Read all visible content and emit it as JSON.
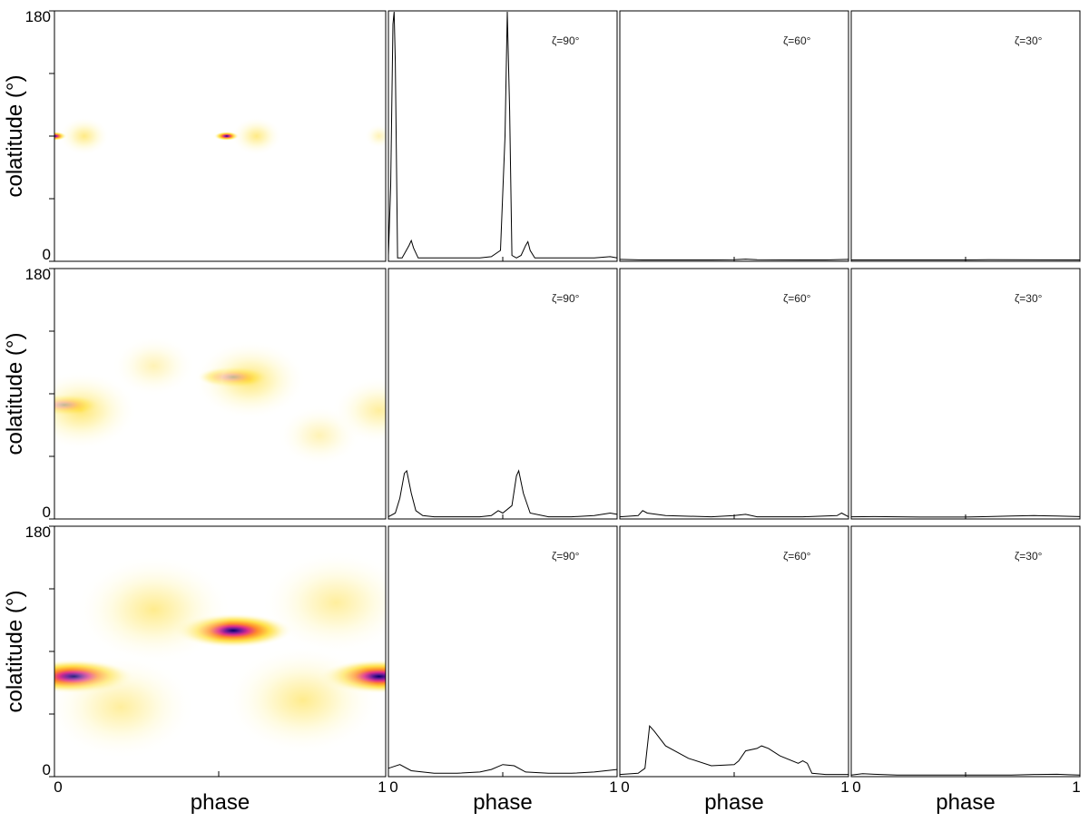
{
  "chart_data": {
    "type": "heatmap",
    "rows": 3,
    "shared_labels": {
      "ylabel": "colatitude (°)",
      "xlabel": "phase",
      "y_ticks": [
        "180",
        "0"
      ],
      "x_ticks": [
        "0",
        "1"
      ]
    },
    "heatmaps": [
      {
        "row": 1,
        "xlim": [
          0,
          1
        ],
        "ylim": [
          0,
          180
        ],
        "colormap": [
          "#ffffff",
          "#fff8c8",
          "#ffe04a",
          "#ff8c2a",
          "#e0308a",
          "#6a1a9a",
          "#000066"
        ],
        "blobs": [
          {
            "phase": 0.0,
            "colatitude": 90,
            "intensity": 0.85
          },
          {
            "phase": 0.09,
            "colatitude": 90,
            "intensity": 0.45
          },
          {
            "phase": 0.52,
            "colatitude": 90,
            "intensity": 0.85
          },
          {
            "phase": 0.61,
            "colatitude": 90,
            "intensity": 0.45
          },
          {
            "phase": 0.98,
            "colatitude": 90,
            "intensity": 0.15
          }
        ]
      },
      {
        "row": 2,
        "xlim": [
          0,
          1
        ],
        "ylim": [
          0,
          180
        ],
        "blobs": [
          {
            "phase": 0.03,
            "colatitude": 82,
            "intensity": 1.0
          },
          {
            "phase": 0.08,
            "colatitude": 78,
            "intensity": 0.55
          },
          {
            "phase": 0.54,
            "colatitude": 102,
            "intensity": 1.0
          },
          {
            "phase": 0.59,
            "colatitude": 100,
            "intensity": 0.55
          },
          {
            "phase": 0.3,
            "colatitude": 110,
            "intensity": 0.15
          },
          {
            "phase": 0.8,
            "colatitude": 60,
            "intensity": 0.15
          },
          {
            "phase": 0.98,
            "colatitude": 78,
            "intensity": 0.3
          }
        ]
      },
      {
        "row": 3,
        "xlim": [
          0,
          1
        ],
        "ylim": [
          0,
          180
        ],
        "blobs": [
          {
            "phase": 0.06,
            "colatitude": 72,
            "intensity": 1.0
          },
          {
            "phase": 0.54,
            "colatitude": 105,
            "intensity": 1.0
          },
          {
            "phase": 0.98,
            "colatitude": 72,
            "intensity": 0.8
          },
          {
            "phase": 0.3,
            "colatitude": 120,
            "intensity": 0.4
          },
          {
            "phase": 0.75,
            "colatitude": 55,
            "intensity": 0.4
          },
          {
            "phase": 0.2,
            "colatitude": 50,
            "intensity": 0.3
          },
          {
            "phase": 0.85,
            "colatitude": 125,
            "intensity": 0.3
          }
        ]
      }
    ],
    "light_curves": [
      {
        "row": 1,
        "zeta": "ζ=90°",
        "ylim": [
          0,
          1
        ],
        "x": [
          0,
          0.01,
          0.02,
          0.025,
          0.03,
          0.04,
          0.06,
          0.09,
          0.1,
          0.11,
          0.13,
          0.2,
          0.3,
          0.4,
          0.45,
          0.49,
          0.51,
          0.52,
          0.53,
          0.54,
          0.56,
          0.58,
          0.6,
          0.61,
          0.62,
          0.64,
          0.7,
          0.8,
          0.9,
          0.97,
          1.0
        ],
        "y": [
          0.02,
          0.3,
          0.95,
          1.0,
          0.8,
          0.01,
          0.01,
          0.06,
          0.08,
          0.05,
          0.01,
          0.01,
          0.01,
          0.01,
          0.015,
          0.04,
          0.5,
          1.0,
          0.6,
          0.02,
          0.01,
          0.02,
          0.06,
          0.075,
          0.04,
          0.01,
          0.01,
          0.01,
          0.01,
          0.015,
          0.01
        ]
      },
      {
        "row": 1,
        "zeta": "ζ=60°",
        "ylim": [
          0,
          1
        ],
        "x": [
          0,
          0.1,
          0.2,
          0.4,
          0.5,
          0.55,
          0.6,
          0.8,
          0.9,
          1.0
        ],
        "y": [
          0.004,
          0.002,
          0.002,
          0.002,
          0.003,
          0.005,
          0.003,
          0.002,
          0.002,
          0.004
        ]
      },
      {
        "row": 1,
        "zeta": "ζ=30°",
        "ylim": [
          0,
          1
        ],
        "x": [
          0,
          0.2,
          0.5,
          0.6,
          1.0
        ],
        "y": [
          0.002,
          0.002,
          0.002,
          0.003,
          0.002
        ]
      },
      {
        "row": 2,
        "zeta": "ζ=90°",
        "ylim": [
          0,
          1
        ],
        "x": [
          0,
          0.03,
          0.05,
          0.07,
          0.08,
          0.1,
          0.12,
          0.15,
          0.2,
          0.3,
          0.4,
          0.45,
          0.48,
          0.5,
          0.54,
          0.56,
          0.57,
          0.59,
          0.62,
          0.7,
          0.8,
          0.9,
          0.97,
          1.0
        ],
        "y": [
          0.005,
          0.02,
          0.08,
          0.18,
          0.19,
          0.1,
          0.03,
          0.01,
          0.005,
          0.005,
          0.005,
          0.01,
          0.03,
          0.02,
          0.05,
          0.17,
          0.19,
          0.1,
          0.02,
          0.005,
          0.005,
          0.01,
          0.02,
          0.015
        ]
      },
      {
        "row": 2,
        "zeta": "ζ=60°",
        "ylim": [
          0,
          1
        ],
        "x": [
          0,
          0.08,
          0.1,
          0.12,
          0.2,
          0.4,
          0.5,
          0.55,
          0.6,
          0.8,
          0.95,
          0.97,
          1.0
        ],
        "y": [
          0.005,
          0.01,
          0.03,
          0.02,
          0.01,
          0.005,
          0.01,
          0.015,
          0.005,
          0.005,
          0.01,
          0.02,
          0.005
        ]
      },
      {
        "row": 2,
        "zeta": "ζ=30°",
        "ylim": [
          0,
          1
        ],
        "x": [
          0,
          0.1,
          0.3,
          0.5,
          0.6,
          0.7,
          0.8,
          0.9,
          1.0
        ],
        "y": [
          0.005,
          0.006,
          0.004,
          0.004,
          0.006,
          0.008,
          0.01,
          0.008,
          0.006
        ]
      },
      {
        "row": 3,
        "zeta": "ζ=90°",
        "ylim": [
          0,
          1
        ],
        "x": [
          0,
          0.05,
          0.1,
          0.2,
          0.3,
          0.4,
          0.45,
          0.5,
          0.55,
          0.6,
          0.7,
          0.8,
          0.9,
          1.0
        ],
        "y": [
          0.03,
          0.045,
          0.02,
          0.01,
          0.01,
          0.015,
          0.025,
          0.045,
          0.04,
          0.015,
          0.01,
          0.01,
          0.015,
          0.025
        ]
      },
      {
        "row": 3,
        "zeta": "ζ=60°",
        "ylim": [
          0,
          1
        ],
        "x": [
          0,
          0.08,
          0.11,
          0.13,
          0.15,
          0.2,
          0.3,
          0.4,
          0.5,
          0.52,
          0.55,
          0.6,
          0.62,
          0.65,
          0.7,
          0.78,
          0.8,
          0.82,
          0.84,
          0.9,
          1.0
        ],
        "y": [
          0.005,
          0.01,
          0.03,
          0.2,
          0.18,
          0.12,
          0.07,
          0.04,
          0.045,
          0.06,
          0.1,
          0.11,
          0.12,
          0.11,
          0.08,
          0.05,
          0.06,
          0.05,
          0.01,
          0.005,
          0.005
        ]
      },
      {
        "row": 3,
        "zeta": "ζ=30°",
        "ylim": [
          0,
          1
        ],
        "x": [
          0,
          0.05,
          0.1,
          0.2,
          0.4,
          0.6,
          0.7,
          0.8,
          0.9,
          0.95,
          1.0
        ],
        "y": [
          0.003,
          0.008,
          0.006,
          0.003,
          0.003,
          0.003,
          0.003,
          0.005,
          0.006,
          0.004,
          0.003
        ]
      }
    ]
  }
}
